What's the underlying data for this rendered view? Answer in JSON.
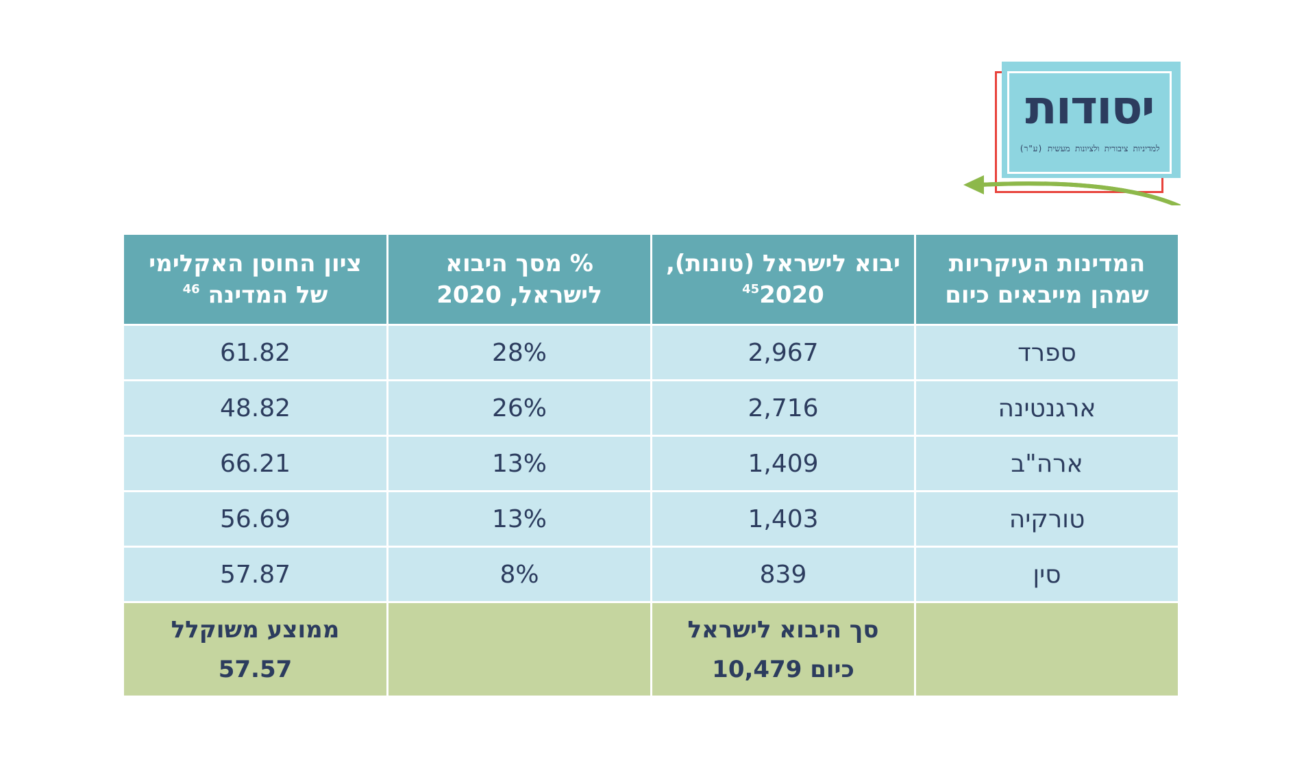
{
  "logo": {
    "title": "יסודות",
    "subtitle": "למדיניות ציבורית ולציונות מעשית (ע\"ר)"
  },
  "table": {
    "headers": [
      {
        "line1": "המדינות העיקריות",
        "line2": "שמהן מייבאים כיום",
        "sup": ""
      },
      {
        "line1": "יבוא לישראל (טונות),",
        "line2": "2020",
        "sup": "45"
      },
      {
        "line1": "% מסך היבוא",
        "line2": "לישראל, 2020",
        "sup": ""
      },
      {
        "line1": "ציון החוסן האקלימי",
        "line2": "של המדינה",
        "sup": "46"
      }
    ],
    "rows": [
      {
        "country": "ספרד",
        "import_tons": "2,967",
        "percent": "28%",
        "resilience": "61.82"
      },
      {
        "country": "ארגנטינה",
        "import_tons": "2,716",
        "percent": "26%",
        "resilience": "48.82"
      },
      {
        "country": "ארה\"ב",
        "import_tons": "1,409",
        "percent": "13%",
        "resilience": "66.21"
      },
      {
        "country": "טורקיה",
        "import_tons": "1,403",
        "percent": "13%",
        "resilience": "56.69"
      },
      {
        "country": "סין",
        "import_tons": "839",
        "percent": "8%",
        "resilience": "57.87"
      }
    ],
    "footer": {
      "total_label": "סך היבוא לישראל",
      "total_value": "כיום 10,479",
      "avg_label": "ממוצע משוקלל",
      "avg_value": "57.57"
    }
  }
}
